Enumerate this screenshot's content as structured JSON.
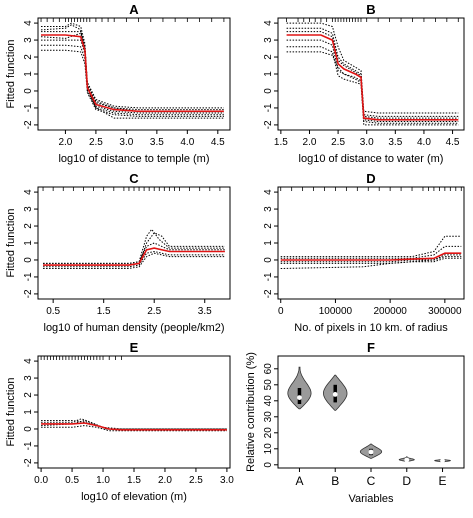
{
  "chart_data": [
    {
      "type": "line",
      "panel_label": "A",
      "xlabel": "log10 of distance to temple (m)",
      "ylabel": "Fitted function",
      "xlim": [
        1.55,
        4.7
      ],
      "ylim": [
        -2.3,
        4.3
      ],
      "xticks": [
        "2.0",
        "2.5",
        "3.0",
        "3.5",
        "4.0",
        "4.5"
      ],
      "xtick_values": [
        2.0,
        2.5,
        3.0,
        3.5,
        4.0,
        4.5
      ],
      "yticks": [
        "-2",
        "-1",
        "0",
        "1",
        "2",
        "3",
        "4"
      ],
      "ytick_values": [
        -2,
        -1,
        0,
        1,
        2,
        3,
        4
      ],
      "rug": [
        1.6,
        1.7,
        1.8,
        1.9,
        2.0,
        2.05,
        2.1,
        2.15,
        2.2,
        2.25,
        2.3,
        2.35,
        2.4,
        2.5,
        2.6,
        2.7,
        2.8,
        3.0,
        3.2,
        3.4,
        3.6,
        3.8,
        4.0,
        4.2,
        4.4,
        4.6
      ],
      "mean_curve": {
        "x": [
          1.6,
          2.0,
          2.25,
          2.32,
          2.36,
          2.5,
          2.8,
          3.2,
          4.6
        ],
        "y": [
          3.3,
          3.3,
          3.2,
          2.4,
          0.2,
          -0.8,
          -1.1,
          -1.2,
          -1.2
        ]
      },
      "replicates": [
        {
          "x": [
            1.6,
            2.0,
            2.1,
            2.25,
            2.32,
            2.36,
            2.5,
            2.8,
            3.2,
            4.6
          ],
          "y": [
            3.8,
            3.8,
            4.0,
            3.8,
            2.8,
            0.4,
            -0.6,
            -1.0,
            -1.1,
            -1.1
          ]
        },
        {
          "x": [
            1.6,
            2.0,
            2.25,
            2.32,
            2.36,
            2.5,
            2.8,
            3.2,
            4.6
          ],
          "y": [
            3.5,
            3.5,
            3.5,
            2.6,
            0.3,
            -0.7,
            -1.0,
            -1.2,
            -1.2
          ]
        },
        {
          "x": [
            1.6,
            2.0,
            2.25,
            2.32,
            2.36,
            2.5,
            2.8,
            3.2,
            4.6
          ],
          "y": [
            3.0,
            3.0,
            3.0,
            2.2,
            0.1,
            -0.9,
            -1.2,
            -1.3,
            -1.3
          ]
        },
        {
          "x": [
            1.6,
            2.0,
            2.25,
            2.32,
            2.36,
            2.5,
            2.8,
            3.2,
            4.6
          ],
          "y": [
            2.7,
            2.7,
            2.6,
            1.9,
            0.0,
            -1.0,
            -1.3,
            -1.4,
            -1.4
          ]
        },
        {
          "x": [
            1.6,
            2.0,
            2.25,
            2.32,
            2.36,
            2.5,
            2.8,
            3.2,
            4.6
          ],
          "y": [
            2.4,
            2.4,
            2.3,
            1.6,
            -0.1,
            -1.1,
            -1.4,
            -1.5,
            -1.5
          ]
        },
        {
          "x": [
            1.6,
            2.0,
            2.1,
            2.25,
            2.32,
            2.36,
            2.5,
            2.8,
            3.2,
            4.6
          ],
          "y": [
            3.6,
            3.7,
            3.9,
            3.6,
            2.5,
            0.5,
            -0.5,
            -0.9,
            -1.0,
            -1.0
          ]
        },
        {
          "x": [
            1.6,
            2.0,
            2.25,
            2.32,
            2.36,
            2.5,
            2.8,
            3.2,
            4.6
          ],
          "y": [
            3.2,
            3.1,
            3.4,
            2.4,
            0.2,
            -1.0,
            -1.6,
            -1.6,
            -1.6
          ]
        }
      ]
    },
    {
      "type": "line",
      "panel_label": "B",
      "xlabel": "log10 of distance to water (m)",
      "ylabel": "",
      "xlim": [
        1.45,
        4.7
      ],
      "ylim": [
        -2.3,
        4.3
      ],
      "xticks": [
        "1.5",
        "2.0",
        "2.5",
        "3.0",
        "3.5",
        "4.0",
        "4.5"
      ],
      "xtick_values": [
        1.5,
        2.0,
        2.5,
        3.0,
        3.5,
        4.0,
        4.5
      ],
      "yticks": [
        "-2",
        "-1",
        "0",
        "1",
        "2",
        "3",
        "4"
      ],
      "ytick_values": [
        -2,
        -1,
        0,
        1,
        2,
        3,
        4
      ],
      "rug": [
        1.6,
        1.8,
        1.9,
        2.0,
        2.1,
        2.2,
        2.3,
        2.4,
        2.45,
        2.5,
        2.55,
        2.6,
        2.65,
        2.7,
        2.75,
        2.8,
        2.85,
        2.9,
        3.0,
        3.2,
        3.4,
        3.6,
        3.8,
        4.0,
        4.2,
        4.4,
        4.6
      ],
      "mean_curve": {
        "x": [
          1.6,
          2.2,
          2.4,
          2.5,
          2.6,
          2.8,
          2.9,
          2.95,
          3.2,
          4.6
        ],
        "y": [
          3.3,
          3.3,
          3.0,
          1.6,
          1.3,
          1.0,
          0.8,
          -1.6,
          -1.7,
          -1.7
        ]
      },
      "replicates": [
        {
          "x": [
            1.6,
            2.2,
            2.4,
            2.5,
            2.6,
            2.8,
            2.9,
            2.95,
            3.2,
            4.6
          ],
          "y": [
            4.0,
            4.0,
            3.8,
            2.6,
            1.8,
            1.4,
            1.2,
            -1.2,
            -1.3,
            -1.3
          ]
        },
        {
          "x": [
            1.6,
            2.2,
            2.4,
            2.5,
            2.6,
            2.8,
            2.9,
            2.95,
            3.2,
            4.6
          ],
          "y": [
            3.7,
            3.7,
            3.4,
            2.0,
            1.6,
            1.2,
            1.0,
            -1.4,
            -1.5,
            -1.5
          ]
        },
        {
          "x": [
            1.6,
            2.2,
            2.4,
            2.5,
            2.6,
            2.8,
            2.9,
            2.95,
            3.2,
            4.6
          ],
          "y": [
            3.0,
            3.0,
            2.7,
            1.2,
            1.0,
            0.8,
            0.6,
            -1.8,
            -1.9,
            -1.9
          ]
        },
        {
          "x": [
            1.6,
            2.2,
            2.4,
            2.5,
            2.6,
            2.8,
            2.9,
            2.95,
            3.2,
            4.6
          ],
          "y": [
            2.6,
            2.6,
            2.3,
            0.9,
            0.7,
            0.5,
            0.4,
            -2.0,
            -2.0,
            -2.0
          ]
        },
        {
          "x": [
            1.6,
            2.2,
            2.4,
            2.5,
            2.6,
            2.8,
            2.9,
            2.95,
            3.2,
            4.6
          ],
          "y": [
            2.3,
            2.3,
            2.1,
            1.4,
            1.0,
            0.7,
            0.5,
            -1.7,
            -1.8,
            -1.8
          ]
        },
        {
          "x": [
            1.6,
            2.2,
            2.4,
            2.5,
            2.6,
            2.8,
            2.9,
            2.95,
            3.2,
            4.6
          ],
          "y": [
            3.5,
            3.5,
            3.2,
            1.8,
            1.5,
            1.1,
            0.9,
            -1.5,
            -1.6,
            -1.6
          ]
        }
      ]
    },
    {
      "type": "line",
      "panel_label": "C",
      "xlabel": "log10 of human density (people/km2)",
      "ylabel": "Fitted function",
      "xlim": [
        0.2,
        4.0
      ],
      "ylim": [
        -2.3,
        4.3
      ],
      "xticks": [
        "0.5",
        "1.5",
        "2.5",
        "3.5"
      ],
      "xtick_values": [
        0.5,
        1.5,
        2.5,
        3.5
      ],
      "yticks": [
        "-2",
        "-1",
        "0",
        "1",
        "2",
        "3",
        "4"
      ],
      "ytick_values": [
        -2,
        -1,
        0,
        1,
        2,
        3,
        4
      ],
      "rug": [
        0.3,
        0.5,
        0.7,
        0.9,
        1.1,
        1.3,
        1.5,
        1.7,
        1.9,
        2.0,
        2.1,
        2.2,
        2.3,
        2.4,
        2.5,
        2.6,
        2.7,
        2.8,
        2.9,
        3.0,
        3.2,
        3.4,
        3.6,
        3.8
      ],
      "mean_curve": {
        "x": [
          0.3,
          2.0,
          2.2,
          2.35,
          2.5,
          2.8,
          3.9
        ],
        "y": [
          -0.3,
          -0.3,
          -0.2,
          0.6,
          0.7,
          0.5,
          0.5
        ]
      },
      "replicates": [
        {
          "x": [
            0.3,
            2.0,
            2.2,
            2.35,
            2.45,
            2.6,
            2.8,
            3.9
          ],
          "y": [
            -0.2,
            -0.2,
            -0.1,
            1.4,
            1.8,
            1.2,
            0.7,
            0.7
          ]
        },
        {
          "x": [
            0.3,
            2.0,
            2.2,
            2.35,
            2.5,
            2.65,
            2.8,
            3.9
          ],
          "y": [
            -0.3,
            -0.3,
            -0.2,
            1.0,
            1.6,
            1.4,
            0.8,
            0.8
          ]
        },
        {
          "x": [
            0.3,
            2.0,
            2.2,
            2.35,
            2.5,
            2.8,
            3.9
          ],
          "y": [
            -0.4,
            -0.4,
            -0.3,
            0.4,
            0.5,
            0.3,
            0.3
          ]
        },
        {
          "x": [
            0.3,
            2.0,
            2.2,
            2.35,
            2.5,
            2.8,
            3.9
          ],
          "y": [
            -0.5,
            -0.5,
            -0.4,
            0.2,
            0.4,
            0.2,
            0.2
          ]
        },
        {
          "x": [
            0.3,
            2.0,
            2.2,
            2.35,
            2.5,
            2.8,
            3.9
          ],
          "y": [
            -0.2,
            -0.2,
            -0.1,
            0.8,
            1.0,
            0.6,
            0.6
          ]
        }
      ]
    },
    {
      "type": "line",
      "panel_label": "D",
      "xlabel": "No. of pixels in 10 km. of radius",
      "ylabel": "",
      "xlim": [
        -5000,
        335000
      ],
      "ylim": [
        -2.3,
        4.3
      ],
      "xticks": [
        "0",
        "100000",
        "200000",
        "300000"
      ],
      "xtick_values": [
        0,
        100000,
        200000,
        300000
      ],
      "yticks": [
        "-2",
        "-1",
        "0",
        "1",
        "2",
        "3",
        "4"
      ],
      "ytick_values": [
        -2,
        -1,
        0,
        1,
        2,
        3,
        4
      ],
      "rug": [
        0,
        20000,
        40000,
        60000,
        80000,
        100000,
        120000,
        140000,
        160000,
        180000,
        200000,
        220000,
        240000,
        260000,
        270000,
        280000,
        290000,
        300000,
        310000,
        320000,
        330000
      ],
      "mean_curve": {
        "x": [
          0,
          200000,
          240000,
          280000,
          300000,
          330000
        ],
        "y": [
          0.0,
          0.0,
          0.05,
          0.1,
          0.4,
          0.4
        ]
      },
      "replicates": [
        {
          "x": [
            0,
            200000,
            240000,
            280000,
            300000,
            330000
          ],
          "y": [
            0.2,
            0.2,
            0.2,
            0.5,
            1.4,
            1.4
          ]
        },
        {
          "x": [
            0,
            200000,
            240000,
            280000,
            300000,
            330000
          ],
          "y": [
            0.1,
            0.1,
            0.1,
            0.3,
            0.8,
            0.8
          ]
        },
        {
          "x": [
            0,
            200000,
            240000,
            280000,
            300000,
            330000
          ],
          "y": [
            -0.1,
            -0.1,
            0.0,
            0.0,
            0.2,
            0.2
          ]
        },
        {
          "x": [
            0,
            200000,
            240000,
            280000,
            300000,
            330000
          ],
          "y": [
            -0.2,
            -0.2,
            -0.1,
            -0.1,
            0.1,
            0.1
          ]
        },
        {
          "x": [
            0,
            150000,
            200000,
            240000,
            280000,
            300000,
            330000
          ],
          "y": [
            -0.5,
            -0.4,
            -0.2,
            -0.1,
            0.0,
            0.3,
            0.3
          ]
        }
      ]
    },
    {
      "type": "line",
      "panel_label": "E",
      "xlabel": "log10 of elevation (m)",
      "ylabel": "Fitted function",
      "xlim": [
        -0.05,
        3.05
      ],
      "ylim": [
        -2.3,
        4.3
      ],
      "xticks": [
        "0.0",
        "0.5",
        "1.0",
        "1.5",
        "2.0",
        "2.5",
        "3.0"
      ],
      "xtick_values": [
        0.0,
        0.5,
        1.0,
        1.5,
        2.0,
        2.5,
        3.0
      ],
      "yticks": [
        "-2",
        "-1",
        "0",
        "1",
        "2",
        "3",
        "4"
      ],
      "ytick_values": [
        -2,
        -1,
        0,
        1,
        2,
        3,
        4
      ],
      "rug": [
        0.0,
        0.05,
        0.1,
        0.15,
        0.2,
        0.25,
        0.3,
        0.35,
        0.4,
        0.45,
        0.5,
        0.55,
        0.6,
        0.65,
        0.7,
        0.75,
        0.8,
        0.85,
        0.9,
        0.95,
        1.0,
        1.1,
        1.2,
        1.3
      ],
      "mean_curve": {
        "x": [
          0.0,
          0.5,
          0.7,
          0.9,
          1.1,
          1.3,
          3.0
        ],
        "y": [
          0.3,
          0.3,
          0.35,
          0.2,
          0.0,
          -0.05,
          -0.05
        ]
      },
      "replicates": [
        {
          "x": [
            0.0,
            0.5,
            0.65,
            0.8,
            1.0,
            1.3,
            3.0
          ],
          "y": [
            0.4,
            0.4,
            0.6,
            0.4,
            0.1,
            0.0,
            0.0
          ]
        },
        {
          "x": [
            0.0,
            0.5,
            0.7,
            0.85,
            1.05,
            1.3,
            3.0
          ],
          "y": [
            0.2,
            0.3,
            0.5,
            0.3,
            0.0,
            -0.05,
            -0.05
          ]
        },
        {
          "x": [
            0.0,
            0.5,
            0.7,
            0.9,
            1.1,
            1.3,
            3.0
          ],
          "y": [
            0.1,
            0.1,
            0.2,
            0.1,
            -0.1,
            -0.1,
            -0.1
          ]
        },
        {
          "x": [
            0.0,
            0.5,
            0.7,
            0.9,
            1.1,
            1.3,
            3.0
          ],
          "y": [
            0.5,
            0.5,
            0.4,
            0.2,
            0.0,
            0.0,
            0.0
          ]
        }
      ]
    },
    {
      "type": "violin",
      "panel_label": "F",
      "xlabel": "Variables",
      "ylabel": "Relative contribution (%)",
      "ylim": [
        -2,
        68
      ],
      "yticks": [
        "0",
        "10",
        "20",
        "30",
        "40",
        "50",
        "60"
      ],
      "ytick_values": [
        0,
        10,
        20,
        30,
        40,
        50,
        60
      ],
      "categories": [
        "A",
        "B",
        "C",
        "D",
        "E"
      ],
      "distributions": [
        {
          "min": 35,
          "q1": 38,
          "median": 42,
          "q3": 48,
          "max": 61,
          "half_width": 0.35
        },
        {
          "min": 34,
          "q1": 39,
          "median": 44,
          "q3": 50,
          "max": 56,
          "half_width": 0.33
        },
        {
          "min": 4,
          "q1": 6,
          "median": 8,
          "q3": 10,
          "max": 13,
          "half_width": 0.3
        },
        {
          "min": 2,
          "q1": 2.6,
          "median": 3,
          "q3": 3.6,
          "max": 5,
          "half_width": 0.22
        },
        {
          "min": 1.8,
          "q1": 2.2,
          "median": 2.5,
          "q3": 2.9,
          "max": 3.5,
          "half_width": 0.22
        }
      ]
    }
  ]
}
